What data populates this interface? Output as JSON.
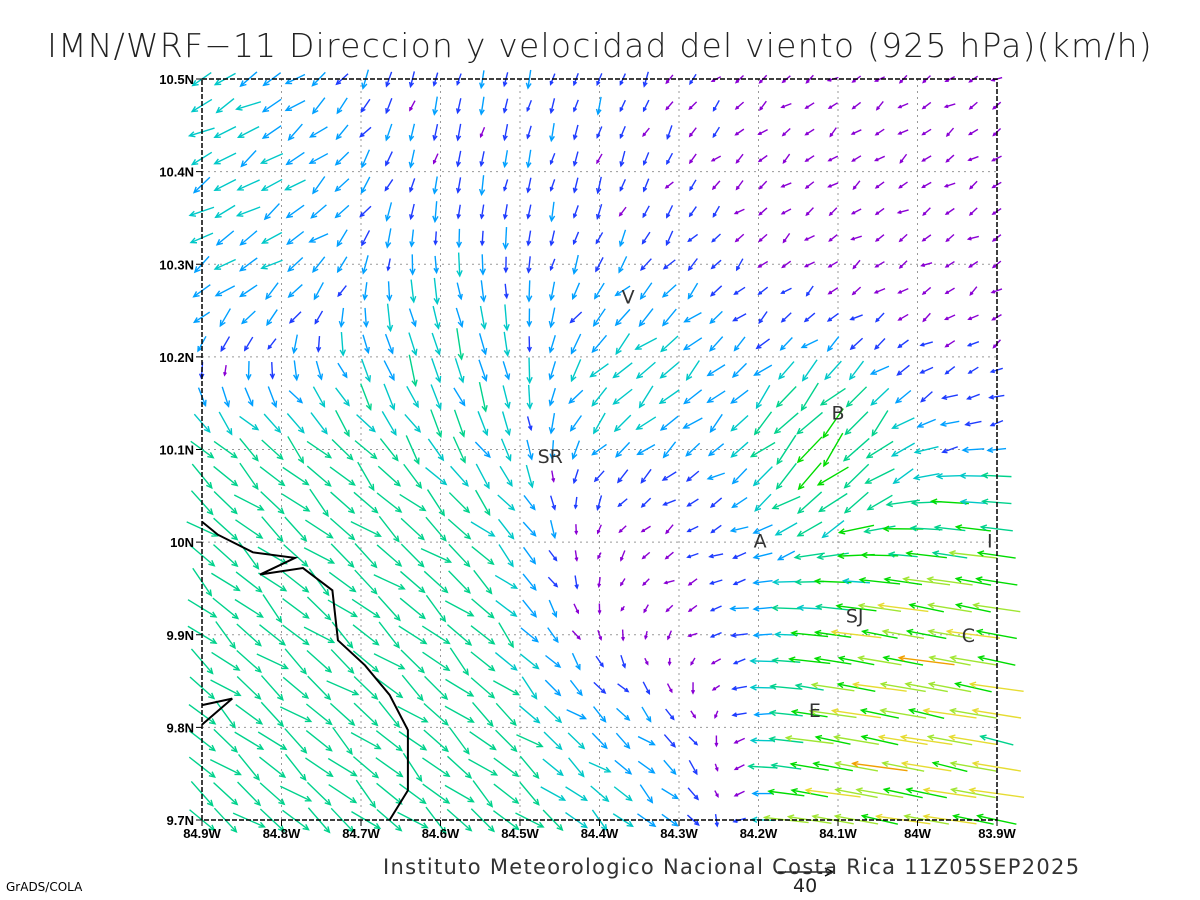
{
  "title": "IMN/WRF−11 Direccion y velocidad del viento (925 hPa)(km/h)",
  "footer": "Instituto Meteorologico Nacional Costa Rica 11Z05SEP2025",
  "credit": "GrADS/COLA",
  "reference_vector": {
    "label": "40",
    "value_kmh": 40
  },
  "chart_data": {
    "type": "vector-field",
    "variable": "wind direction and speed",
    "level": "925 hPa",
    "units": "km/h",
    "xlim": [
      -84.9,
      -83.9
    ],
    "ylim": [
      9.7,
      10.5
    ],
    "x_ticks": [
      {
        "v": -84.9,
        "label": "84.9W"
      },
      {
        "v": -84.8,
        "label": "84.8W"
      },
      {
        "v": -84.7,
        "label": "84.7W"
      },
      {
        "v": -84.6,
        "label": "84.6W"
      },
      {
        "v": -84.5,
        "label": "84.5W"
      },
      {
        "v": -84.4,
        "label": "84.4W"
      },
      {
        "v": -84.3,
        "label": "84.3W"
      },
      {
        "v": -84.2,
        "label": "84.2W"
      },
      {
        "v": -84.1,
        "label": "84.1W"
      },
      {
        "v": -84.0,
        "label": "84W"
      },
      {
        "v": -83.9,
        "label": "83.9W"
      }
    ],
    "y_ticks": [
      {
        "v": 10.5,
        "label": "10.5N"
      },
      {
        "v": 10.4,
        "label": "10.4N"
      },
      {
        "v": 10.3,
        "label": "10.3N"
      },
      {
        "v": 10.2,
        "label": "10.2N"
      },
      {
        "v": 10.1,
        "label": "10.1N"
      },
      {
        "v": 10.0,
        "label": "10N"
      },
      {
        "v": 9.9,
        "label": "9.9N"
      },
      {
        "v": 9.8,
        "label": "9.8N"
      },
      {
        "v": 9.7,
        "label": "9.7N"
      }
    ],
    "grid": true,
    "cities": [
      {
        "label": "V",
        "lon": -84.364,
        "lat": 10.265
      },
      {
        "label": "SR",
        "lon": -84.462,
        "lat": 10.093
      },
      {
        "label": "B",
        "lon": -84.1,
        "lat": 10.14
      },
      {
        "label": "A",
        "lon": -84.198,
        "lat": 10.002
      },
      {
        "label": "I",
        "lon": -83.909,
        "lat": 10.002
      },
      {
        "label": "SJ",
        "lon": -84.079,
        "lat": 9.921
      },
      {
        "label": "C",
        "lon": -83.936,
        "lat": 9.9
      },
      {
        "label": "E",
        "lon": -84.129,
        "lat": 9.819
      }
    ],
    "coastline": [
      [
        [
          -84.9,
          10.022
        ],
        [
          -84.88,
          10.008
        ],
        [
          -84.836,
          9.989
        ],
        [
          -84.783,
          9.983
        ],
        [
          -84.827,
          9.965
        ],
        [
          -84.773,
          9.972
        ],
        [
          -84.736,
          9.948
        ],
        [
          -84.729,
          9.894
        ],
        [
          -84.695,
          9.867
        ],
        [
          -84.664,
          9.835
        ],
        [
          -84.641,
          9.797
        ],
        [
          -84.641,
          9.732
        ],
        [
          -84.664,
          9.7
        ]
      ],
      [
        [
          -84.9,
          9.824
        ],
        [
          -84.862,
          9.831
        ],
        [
          -84.9,
          9.803
        ]
      ]
    ],
    "color_scale": [
      {
        "max": 8,
        "color": "#8a00d4"
      },
      {
        "max": 12,
        "color": "#1e3cff"
      },
      {
        "max": 16,
        "color": "#00a0ff"
      },
      {
        "max": 20,
        "color": "#00c8c8"
      },
      {
        "max": 25,
        "color": "#00d28c"
      },
      {
        "max": 30,
        "color": "#00dc00"
      },
      {
        "max": 35,
        "color": "#a0e632"
      },
      {
        "max": 40,
        "color": "#e6dc32"
      },
      {
        "max": 46,
        "color": "#f0a000"
      },
      {
        "max": 999,
        "color": "#f0285a"
      }
    ]
  }
}
